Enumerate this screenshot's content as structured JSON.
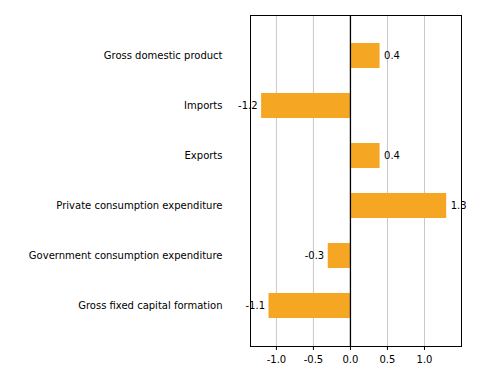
{
  "chart_data": {
    "type": "bar",
    "orientation": "horizontal",
    "categories": [
      "Gross domestic product",
      "Imports",
      "Exports",
      "Private consumption expenditure",
      "Government consumption expenditure",
      "Gross fixed capital formation"
    ],
    "values": [
      0.4,
      -1.2,
      0.4,
      1.3,
      -0.3,
      -1.1
    ],
    "color": "#F5A623",
    "xlim": [
      -1.35,
      1.5
    ],
    "xticks": [
      {
        "value": -1.0,
        "label": "-1.0"
      },
      -0.5,
      {
        "value": 0.0,
        "label": "0.0"
      },
      0.5,
      {
        "value": 1.0,
        "label": "1.0"
      }
    ],
    "grid": true,
    "data_labels": true
  }
}
